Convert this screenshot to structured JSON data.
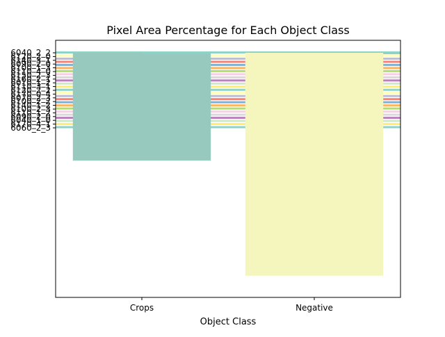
{
  "chart_data": {
    "type": "bar",
    "title": "Pixel Area Percentage for Each Object Class",
    "xlabel": "Object Class",
    "ylabel": "",
    "categories": [
      "Crops",
      "Negative"
    ],
    "ylim": [
      0,
      100
    ],
    "bars": [
      {
        "category": "Crops",
        "value": 46.5,
        "color": "#97c9bf"
      },
      {
        "category": "Negative",
        "value": 95.5,
        "color": "#f5f5be"
      }
    ],
    "overlay": {
      "labels": [
        "6040_2_2",
        "6120_2_0",
        "6140_3_1",
        "6090_2_0",
        "6100_1_3",
        "6110_4_0",
        "6150_2_3",
        "6160_2_1",
        "6010_1_2",
        "6110_3_1",
        "6120_2_2",
        "6170_0_4",
        "6070_2_3",
        "6100_2_2",
        "6140_1_2",
        "6100_2_3",
        "6110_1_2",
        "6090_2_0",
        "6040_1_0",
        "6170_4_1",
        "6060_2_3"
      ],
      "stripe_colors": [
        "#8dd3c7",
        "#ffffb3",
        "#bebada",
        "#fb8072",
        "#80b1d3",
        "#fdb462",
        "#b3de69",
        "#fccde5",
        "#d9d9d9",
        "#bc80bd",
        "#ccebc5",
        "#ffed6f",
        "#8dd3c7",
        "#ffffb3",
        "#bebada",
        "#fb8072",
        "#80b1d3",
        "#fdb462",
        "#b3de69",
        "#fccde5",
        "#d9d9d9",
        "#bc80bd",
        "#ccebc5",
        "#ffed6f",
        "#8dd3c7"
      ]
    },
    "grid": false,
    "legend": "none"
  }
}
